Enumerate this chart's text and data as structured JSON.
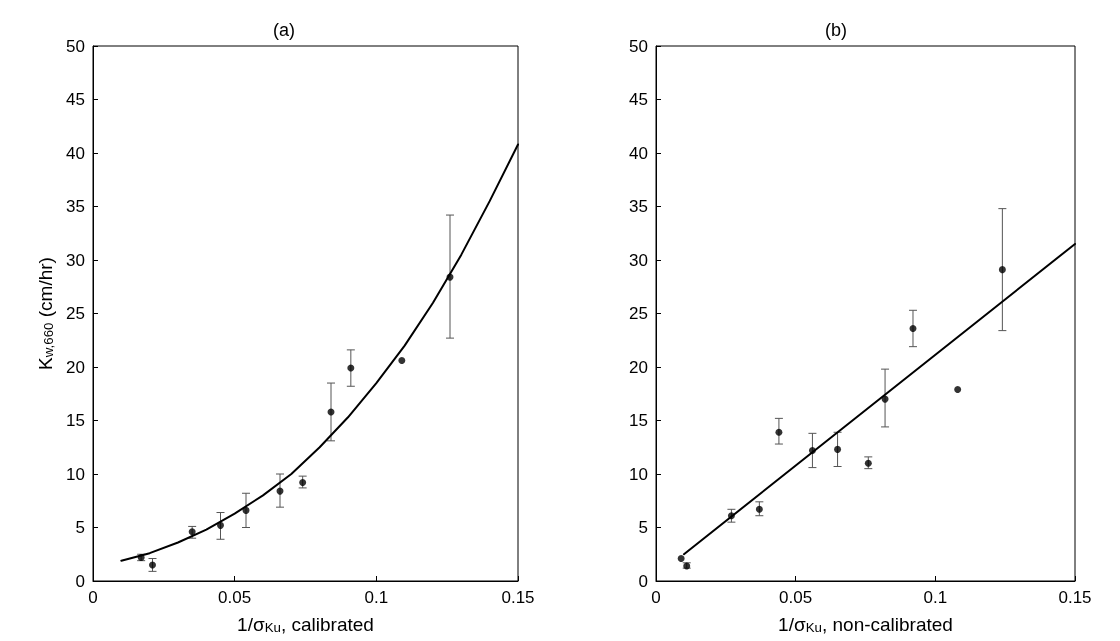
{
  "chart_data": [
    {
      "type": "scatter",
      "title": "(a)",
      "xlabel": "1/σ$_{Ku}$, calibrated",
      "ylabel": "K$_{w,660}$ (cm/hr)",
      "xlim": [
        0,
        0.15
      ],
      "xticks": [
        0,
        0.05,
        0.1,
        0.15
      ],
      "ylim": [
        0,
        50
      ],
      "yticks": [
        0,
        5,
        10,
        15,
        20,
        25,
        30,
        35,
        40,
        45,
        50
      ],
      "grid": false,
      "series": [
        {
          "color": "#000000",
          "marker": "circle",
          "x": [
            0.017,
            0.021,
            0.035,
            0.045,
            0.054,
            0.066,
            0.074,
            0.084,
            0.091,
            0.109,
            0.126
          ],
          "values": [
            2.2,
            1.5,
            4.6,
            5.2,
            6.6,
            8.4,
            9.2,
            15.8,
            19.9,
            20.6,
            28.4
          ],
          "errors": [
            [
              1.9,
              2.5
            ],
            [
              0.9,
              2.1
            ],
            [
              4.0,
              5.1
            ],
            [
              3.9,
              6.4
            ],
            [
              5.0,
              8.2
            ],
            [
              6.9,
              10.0
            ],
            [
              8.7,
              9.8
            ],
            [
              13.1,
              18.5
            ],
            [
              18.2,
              21.6
            ],
            null,
            [
              22.7,
              34.2
            ]
          ]
        },
        {
          "type": "line",
          "color": "#000000",
          "marker": "none",
          "line_style": "solid",
          "x": [
            0.01,
            0.02,
            0.03,
            0.04,
            0.05,
            0.06,
            0.07,
            0.08,
            0.09,
            0.1,
            0.11,
            0.12,
            0.13,
            0.14,
            0.15
          ],
          "values": [
            1.9,
            2.6,
            3.6,
            4.8,
            6.3,
            8.0,
            10.0,
            12.5,
            15.3,
            18.5,
            22.0,
            26.0,
            30.5,
            35.5,
            40.8
          ]
        }
      ]
    },
    {
      "type": "scatter",
      "title": "(b)",
      "xlabel": "1/σ$_{Ku}$, non-calibrated",
      "xlim": [
        0,
        0.15
      ],
      "xticks": [
        0,
        0.05,
        0.1,
        0.15
      ],
      "ylim": [
        0,
        50
      ],
      "yticks": [
        0,
        5,
        10,
        15,
        20,
        25,
        30,
        35,
        40,
        45,
        50
      ],
      "grid": false,
      "series": [
        {
          "color": "#000000",
          "marker": "circle",
          "x": [
            0.009,
            0.011,
            0.027,
            0.037,
            0.044,
            0.056,
            0.065,
            0.076,
            0.082,
            0.092,
            0.108,
            0.124
          ],
          "values": [
            2.1,
            1.4,
            6.1,
            6.7,
            13.9,
            12.2,
            12.3,
            11.0,
            17.0,
            23.6,
            17.9,
            29.1
          ],
          "errors": [
            null,
            [
              1.2,
              1.7
            ],
            [
              5.5,
              6.7
            ],
            [
              6.1,
              7.4
            ],
            [
              12.8,
              15.2
            ],
            [
              10.6,
              13.8
            ],
            [
              10.7,
              13.9
            ],
            [
              10.5,
              11.6
            ],
            [
              14.4,
              19.8
            ],
            [
              21.9,
              25.3
            ],
            null,
            [
              23.4,
              34.8
            ]
          ]
        },
        {
          "type": "line",
          "color": "#000000",
          "marker": "none",
          "line_style": "solid",
          "x": [
            0.01,
            0.15
          ],
          "values": [
            2.5,
            31.5
          ]
        }
      ]
    }
  ]
}
